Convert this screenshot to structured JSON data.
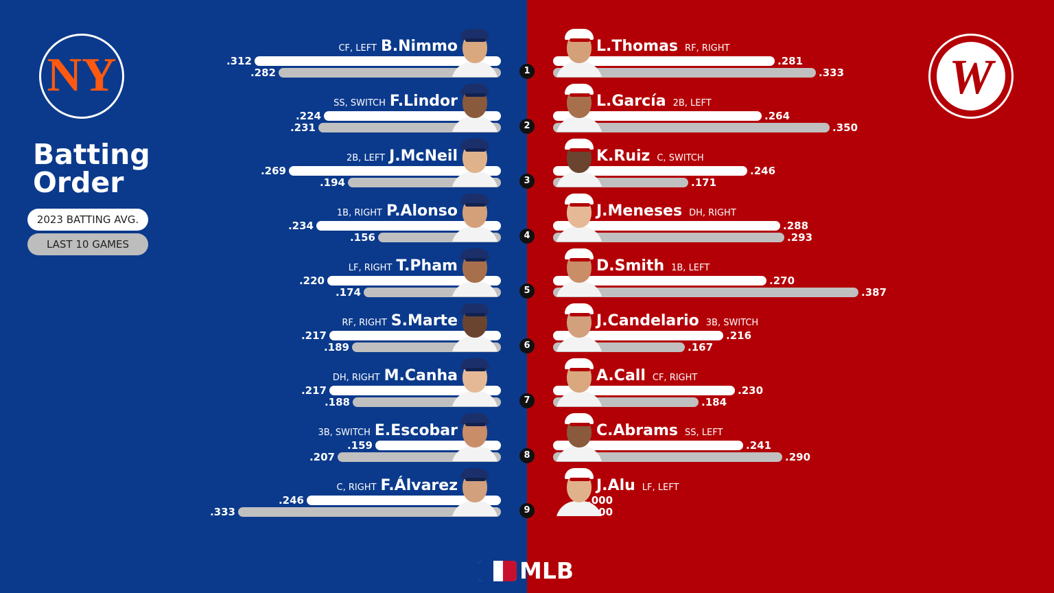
{
  "title_line1": "Batting",
  "title_line2": "Order",
  "legend": {
    "season": "2023 BATTING AVG.",
    "recent": "LAST 10 GAMES"
  },
  "brand": "MLB",
  "colors": {
    "mets_blue": "#0b3a8c",
    "mets_orange": "#ff5910",
    "nats_red": "#b30006",
    "season_bar": "#ffffff",
    "recent_bar": "#c0c0c0"
  },
  "chart_data": {
    "type": "bar",
    "series": [
      {
        "name": "2023 BATTING AVG.",
        "key": "season"
      },
      {
        "name": "LAST 10 GAMES",
        "key": "recent"
      }
    ],
    "mets": [
      {
        "order": "1",
        "name": "B.Nimmo",
        "pos": "CF, LEFT",
        "season": 0.312,
        "season_label": ".312",
        "recent": 0.282,
        "recent_label": ".282"
      },
      {
        "order": "2",
        "name": "F.Lindor",
        "pos": "SS, SWITCH",
        "season": 0.224,
        "season_label": ".224",
        "recent": 0.231,
        "recent_label": ".231"
      },
      {
        "order": "3",
        "name": "J.McNeil",
        "pos": "2B, LEFT",
        "season": 0.269,
        "season_label": ".269",
        "recent": 0.194,
        "recent_label": ".194"
      },
      {
        "order": "4",
        "name": "P.Alonso",
        "pos": "1B, RIGHT",
        "season": 0.234,
        "season_label": ".234",
        "recent": 0.156,
        "recent_label": ".156"
      },
      {
        "order": "5",
        "name": "T.Pham",
        "pos": "LF, RIGHT",
        "season": 0.22,
        "season_label": ".220",
        "recent": 0.174,
        "recent_label": ".174"
      },
      {
        "order": "6",
        "name": "S.Marte",
        "pos": "RF, RIGHT",
        "season": 0.217,
        "season_label": ".217",
        "recent": 0.189,
        "recent_label": ".189"
      },
      {
        "order": "7",
        "name": "M.Canha",
        "pos": "DH, RIGHT",
        "season": 0.217,
        "season_label": ".217",
        "recent": 0.188,
        "recent_label": ".188"
      },
      {
        "order": "8",
        "name": "E.Escobar",
        "pos": "3B, SWITCH",
        "season": 0.159,
        "season_label": ".159",
        "recent": 0.207,
        "recent_label": ".207"
      },
      {
        "order": "9",
        "name": "F.Álvarez",
        "pos": "C, RIGHT",
        "season": 0.246,
        "season_label": ".246",
        "recent": 0.333,
        "recent_label": ".333"
      }
    ],
    "nationals": [
      {
        "name": "L.Thomas",
        "pos": "RF, RIGHT",
        "season": 0.281,
        "season_label": ".281",
        "recent": 0.333,
        "recent_label": ".333"
      },
      {
        "name": "L.García",
        "pos": "2B, LEFT",
        "season": 0.264,
        "season_label": ".264",
        "recent": 0.35,
        "recent_label": ".350"
      },
      {
        "name": "K.Ruiz",
        "pos": "C, SWITCH",
        "season": 0.246,
        "season_label": ".246",
        "recent": 0.171,
        "recent_label": ".171"
      },
      {
        "name": "J.Meneses",
        "pos": "DH, RIGHT",
        "season": 0.288,
        "season_label": ".288",
        "recent": 0.293,
        "recent_label": ".293"
      },
      {
        "name": "D.Smith",
        "pos": "1B, LEFT",
        "season": 0.27,
        "season_label": ".270",
        "recent": 0.387,
        "recent_label": ".387"
      },
      {
        "name": "J.Candelario",
        "pos": "3B, SWITCH",
        "season": 0.216,
        "season_label": ".216",
        "recent": 0.167,
        "recent_label": ".167"
      },
      {
        "name": "A.Call",
        "pos": "CF, RIGHT",
        "season": 0.23,
        "season_label": ".230",
        "recent": 0.184,
        "recent_label": ".184"
      },
      {
        "name": "C.Abrams",
        "pos": "SS, LEFT",
        "season": 0.241,
        "season_label": ".241",
        "recent": 0.29,
        "recent_label": ".290"
      },
      {
        "name": "J.Alu",
        "pos": "LF, LEFT",
        "season": 0.0,
        "season_label": ".000",
        "recent": 0.0,
        "recent_label": ".000"
      }
    ]
  }
}
